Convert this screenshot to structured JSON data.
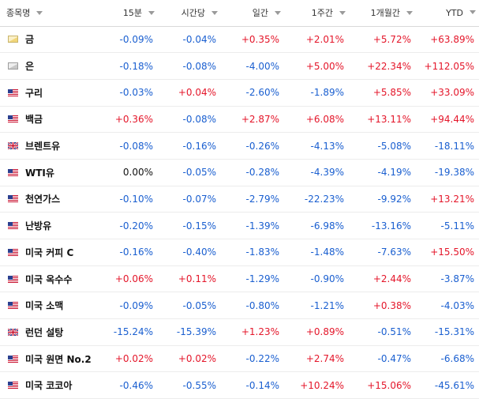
{
  "headers": {
    "name": "종목명",
    "m15": "15분",
    "h1": "시간당",
    "d1": "일간",
    "w1": "1주간",
    "mo1": "1개월간",
    "ytd": "YTD"
  },
  "colors": {
    "positive": "#e4162a",
    "negative": "#1a5fd0",
    "neutral": "#111111"
  },
  "rows": [
    {
      "name": "금",
      "icon": "gold-icon",
      "m15": "-0.09%",
      "h1": "-0.04%",
      "d1": "+0.35%",
      "w1": "+2.01%",
      "mo1": "+5.72%",
      "ytd": "+63.89%"
    },
    {
      "name": "은",
      "icon": "silver-icon",
      "m15": "-0.18%",
      "h1": "-0.08%",
      "d1": "-4.00%",
      "w1": "+5.00%",
      "mo1": "+22.34%",
      "ytd": "+112.05%"
    },
    {
      "name": "구리",
      "icon": "us-flag-icon",
      "m15": "-0.03%",
      "h1": "+0.04%",
      "d1": "-2.60%",
      "w1": "-1.89%",
      "mo1": "+5.85%",
      "ytd": "+33.09%"
    },
    {
      "name": "백금",
      "icon": "us-flag-icon",
      "m15": "+0.36%",
      "h1": "-0.08%",
      "d1": "+2.87%",
      "w1": "+6.08%",
      "mo1": "+13.11%",
      "ytd": "+94.44%"
    },
    {
      "name": "브렌트유",
      "icon": "uk-flag-icon",
      "m15": "-0.08%",
      "h1": "-0.16%",
      "d1": "-0.26%",
      "w1": "-4.13%",
      "mo1": "-5.08%",
      "ytd": "-18.11%"
    },
    {
      "name": "WTI유",
      "icon": "us-flag-icon",
      "m15": "0.00%",
      "h1": "-0.05%",
      "d1": "-0.28%",
      "w1": "-4.39%",
      "mo1": "-4.19%",
      "ytd": "-19.38%"
    },
    {
      "name": "천연가스",
      "icon": "us-flag-icon",
      "m15": "-0.10%",
      "h1": "-0.07%",
      "d1": "-2.79%",
      "w1": "-22.23%",
      "mo1": "-9.92%",
      "ytd": "+13.21%"
    },
    {
      "name": "난방유",
      "icon": "us-flag-icon",
      "m15": "-0.20%",
      "h1": "-0.15%",
      "d1": "-1.39%",
      "w1": "-6.98%",
      "mo1": "-13.16%",
      "ytd": "-5.11%"
    },
    {
      "name": "미국 커피 C",
      "icon": "us-flag-icon",
      "m15": "-0.16%",
      "h1": "-0.40%",
      "d1": "-1.83%",
      "w1": "-1.48%",
      "mo1": "-7.63%",
      "ytd": "+15.50%"
    },
    {
      "name": "미국 옥수수",
      "icon": "us-flag-icon",
      "m15": "+0.06%",
      "h1": "+0.11%",
      "d1": "-1.29%",
      "w1": "-0.90%",
      "mo1": "+2.44%",
      "ytd": "-3.87%"
    },
    {
      "name": "미국 소맥",
      "icon": "us-flag-icon",
      "m15": "-0.09%",
      "h1": "-0.05%",
      "d1": "-0.80%",
      "w1": "-1.21%",
      "mo1": "+0.38%",
      "ytd": "-4.03%"
    },
    {
      "name": "런던 설탕",
      "icon": "uk-flag-icon",
      "m15": "-15.24%",
      "h1": "-15.39%",
      "d1": "+1.23%",
      "w1": "+0.89%",
      "mo1": "-0.51%",
      "ytd": "-15.31%"
    },
    {
      "name": "미국 원면 No.2",
      "icon": "us-flag-icon",
      "m15": "+0.02%",
      "h1": "+0.02%",
      "d1": "-0.22%",
      "w1": "+2.74%",
      "mo1": "-0.47%",
      "ytd": "-6.68%"
    },
    {
      "name": "미국 코코아",
      "icon": "us-flag-icon",
      "m15": "-0.46%",
      "h1": "-0.55%",
      "d1": "-0.14%",
      "w1": "+10.24%",
      "mo1": "+15.06%",
      "ytd": "-45.61%"
    }
  ]
}
